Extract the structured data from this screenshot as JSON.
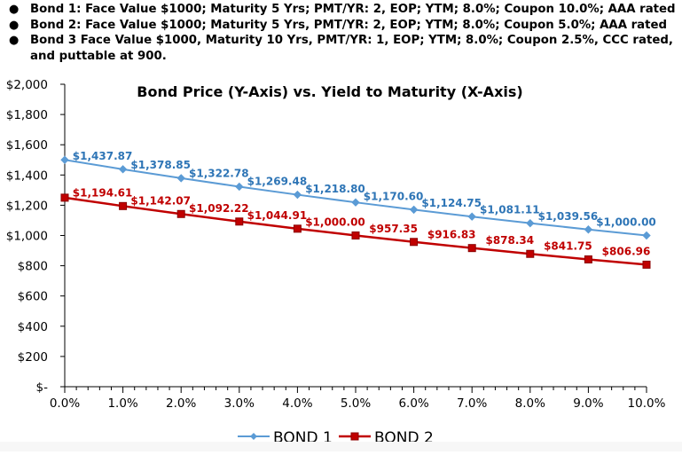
{
  "bullets": [
    "Bond 1: Face Value $1000; Maturity 5 Yrs; PMT/YR: 2, EOP; YTM; 8.0%; Coupon 10.0%; AAA rated",
    "Bond 2: Face Value $1000; Maturity 5 Yrs, PMT/YR: 2, EOP; YTM; 8.0%; Coupon 5.0%; AAA rated",
    "Bond 3 Face Value $1000, Maturity 10 Yrs, PMT/YR: 1, EOP; YTM; 8.0%; Coupon 2.5%, CCC rated, and puttable at 900."
  ],
  "chart_data": {
    "type": "line",
    "title": "Bond Price (Y-Axis) vs. Yield to Maturity (X-Axis)",
    "x": [
      0,
      1,
      2,
      3,
      4,
      5,
      6,
      7,
      8,
      9,
      10
    ],
    "x_tick_labels": [
      "0.0%",
      "1.0%",
      "2.0%",
      "3.0%",
      "4.0%",
      "5.0%",
      "6.0%",
      "7.0%",
      "8.0%",
      "9.0%",
      "10.0%"
    ],
    "ylim": [
      0,
      2000
    ],
    "y_tick_values": [
      0,
      200,
      400,
      600,
      800,
      1000,
      1200,
      1400,
      1600,
      1800,
      2000
    ],
    "y_tick_labels": [
      "$-",
      "$200",
      "$400",
      "$600",
      "$800",
      "$1,000",
      "$1,200",
      "$1,400",
      "$1,600",
      "$1,800",
      "$2,000"
    ],
    "legend_position": "bottom",
    "series": [
      {
        "name": "BOND 1",
        "color": "#5b9bd5",
        "label_color": "#2e75b6",
        "marker": "diamond",
        "values": [
          1500.0,
          1437.87,
          1378.85,
          1322.78,
          1269.48,
          1218.8,
          1170.6,
          1124.75,
          1081.11,
          1039.56,
          1000.0
        ],
        "labels": [
          "",
          "$1,437.87",
          "$1,378.85",
          "$1,322.78",
          "$1,269.48",
          "$1,218.80",
          "$1,170.60",
          "$1,124.75",
          "$1,081.11",
          "$1,039.56",
          "$1,000.00"
        ]
      },
      {
        "name": "BOND 2",
        "color": "#c00000",
        "label_color": "#c00000",
        "marker": "square",
        "values": [
          1250.0,
          1194.61,
          1142.07,
          1092.22,
          1044.91,
          1000.0,
          957.35,
          916.83,
          878.34,
          841.75,
          806.96
        ],
        "labels": [
          "",
          "$1,194.61",
          "$1,142.07",
          "$1,092.22",
          "$1,044.91",
          "$1,000.00",
          "$957.35",
          "$916.83",
          "$878.34",
          "$841.75",
          "$806.96"
        ]
      }
    ]
  }
}
